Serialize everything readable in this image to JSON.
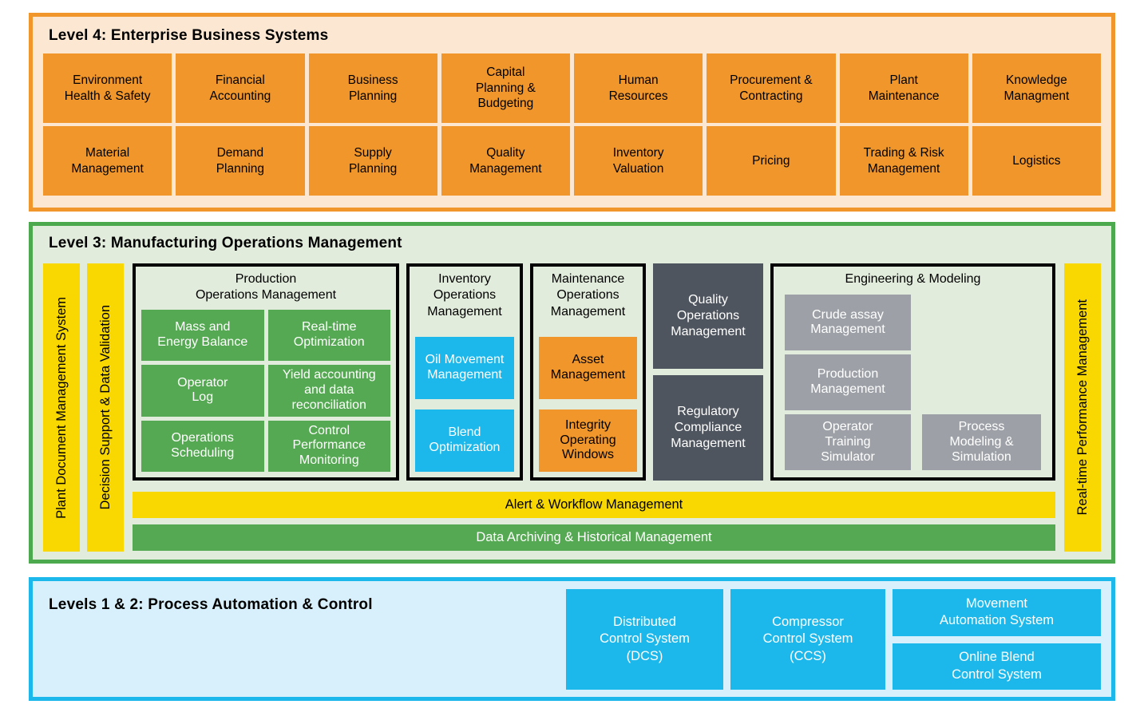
{
  "colors": {
    "orange": "#F0962B",
    "orange_panel_bg": "#FBE7D2",
    "green_border": "#4DA94D",
    "green_panel_bg": "#E2ECDC",
    "green_box": "#55A952",
    "yellow": "#F8D800",
    "cyan": "#1CB8EB",
    "cyan_panel_bg": "#D8F0FB",
    "dark_slate": "#4F555E",
    "gray": "#9DA1A7",
    "text_dark": "#000000",
    "text_light": "#FFFFFF"
  },
  "level4": {
    "title": "Level 4: Enterprise Business Systems",
    "row1": [
      "Environment\nHealth & Safety",
      "Financial\nAccounting",
      "Business\nPlanning",
      "Capital\nPlanning &\nBudgeting",
      "Human\nResources",
      "Procurement &\nContracting",
      "Plant\nMaintenance",
      "Knowledge\nManagment"
    ],
    "row2": [
      "Material\nManagement",
      "Demand\nPlanning",
      "Supply\nPlanning",
      "Quality\nManagement",
      "Inventory\nValuation",
      "Pricing",
      "Trading & Risk\nManagement",
      "Logistics"
    ]
  },
  "level3": {
    "title": "Level 3: Manufacturing Operations Management",
    "side_bars": {
      "left1": "Plant Document Management System",
      "left2": "Decision Support & Data Validation",
      "right": "Real-time Performance Management"
    },
    "production": {
      "title": "Production\nOperations Management",
      "items": [
        "Mass and\nEnergy Balance",
        "Real-time\nOptimization",
        "Operator\nLog",
        "Yield accounting\nand data\nreconciliation",
        "Operations\nScheduling",
        "Control\nPerformance\nMonitoring"
      ]
    },
    "inventory": {
      "title": "Inventory\nOperations\nManagement",
      "items": [
        "Oil Movement\nManagement",
        "Blend\nOptimization"
      ]
    },
    "maintenance": {
      "title": "Maintenance\nOperations\nManagement",
      "items": [
        "Asset\nManagement",
        "Integrity\nOperating\nWindows"
      ]
    },
    "quality_stack": [
      "Quality\nOperations\nManagement",
      "Regulatory\nCompliance\nManagement"
    ],
    "engineering": {
      "title": "Engineering & Modeling",
      "items": [
        "Crude assay\nManagement",
        "Production\nManagement",
        "Operator\nTraining\nSimulator",
        "Process\nModeling &\nSimulation"
      ]
    },
    "alert_bar": "Alert & Workflow Management",
    "archive_bar": "Data Archiving & Historical Management"
  },
  "levels12": {
    "title": "Levels 1 & 2: Process Automation & Control",
    "dcs": "Distributed\nControl System\n(DCS)",
    "ccs": "Compressor\nControl System\n(CCS)",
    "movement": "Movement\nAutomation System",
    "blend": "Online Blend\nControl System"
  }
}
